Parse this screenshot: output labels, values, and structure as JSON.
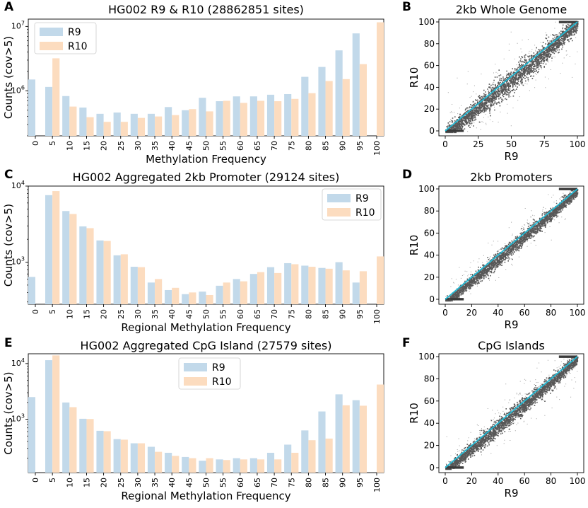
{
  "colors": {
    "r9": "#c2d9ea",
    "r10": "#fcdcbf",
    "scatter": "#3a3a3a",
    "diag": "#22b9d4"
  },
  "chart_data": [
    {
      "panel": "A",
      "type": "bar",
      "yscale": "log",
      "title": "HG002 R9 & R10 (28862851 sites)",
      "xlabel": "Methylation Frequency",
      "ylabel": "Counts (cov>5)",
      "ylim": [
        200000,
        13000000
      ],
      "yticks": [
        {
          "value": 1000000,
          "base": "10",
          "exp": "6"
        },
        {
          "value": 10000000,
          "base": "10",
          "exp": "7"
        }
      ],
      "legend": "top-left",
      "categories": [
        "0",
        "5",
        "10",
        "15",
        "20",
        "25",
        "30",
        "35",
        "40",
        "45",
        "50",
        "55",
        "60",
        "65",
        "70",
        "75",
        "80",
        "85",
        "90",
        "95",
        "100"
      ],
      "series": [
        {
          "name": "R9",
          "values": [
            1500000,
            1150000,
            830000,
            550000,
            440000,
            460000,
            440000,
            440000,
            560000,
            500000,
            780000,
            690000,
            820000,
            820000,
            870000,
            890000,
            1650000,
            2350000,
            4250000,
            7800000,
            null
          ]
        },
        {
          "name": "R10",
          "values": [
            null,
            3200000,
            570000,
            390000,
            330000,
            330000,
            380000,
            400000,
            420000,
            520000,
            480000,
            700000,
            650000,
            700000,
            690000,
            750000,
            920000,
            1420000,
            1520000,
            2600000,
            11600000
          ]
        }
      ]
    },
    {
      "panel": "B",
      "type": "scatter",
      "title": "2kb Whole Genome",
      "xlabel": "R9",
      "ylabel": "R10",
      "xlim": [
        0,
        100
      ],
      "ylim": [
        0,
        100
      ],
      "xticks": [
        0,
        25,
        50,
        75,
        100
      ],
      "yticks": [
        0,
        20,
        40,
        60,
        80,
        100
      ],
      "diagonal": true
    },
    {
      "panel": "C",
      "type": "bar",
      "yscale": "log",
      "title": "HG002 Aggregated 2kb Promoter (29124 sites)",
      "xlabel": "Regional Methylation Frequency",
      "ylabel": "Counts (cov>5)",
      "ylim": [
        280,
        10000
      ],
      "yticks": [
        {
          "value": 1000,
          "base": "10",
          "exp": "3"
        },
        {
          "value": 10000,
          "base": "10",
          "exp": "4"
        }
      ],
      "legend": "top-right",
      "categories": [
        "0",
        "5",
        "10",
        "15",
        "20",
        "25",
        "30",
        "35",
        "40",
        "45",
        "50",
        "55",
        "60",
        "65",
        "70",
        "75",
        "80",
        "85",
        "90",
        "95",
        "100"
      ],
      "series": [
        {
          "name": "R9",
          "values": [
            640,
            7600,
            4700,
            2950,
            1930,
            1230,
            870,
            540,
            430,
            380,
            410,
            490,
            600,
            700,
            860,
            970,
            900,
            840,
            1000,
            540,
            null
          ]
        },
        {
          "name": "R10",
          "values": [
            null,
            8600,
            4300,
            2800,
            1900,
            1270,
            860,
            600,
            460,
            400,
            370,
            540,
            560,
            740,
            720,
            940,
            870,
            820,
            780,
            760,
            1190
          ]
        }
      ]
    },
    {
      "panel": "D",
      "type": "scatter",
      "title": "2kb Promoters",
      "xlabel": "R9",
      "ylabel": "R10",
      "xlim": [
        0,
        100
      ],
      "ylim": [
        0,
        100
      ],
      "xticks": [
        0,
        20,
        40,
        60,
        80,
        100
      ],
      "yticks": [
        0,
        20,
        40,
        60,
        80,
        100
      ],
      "diagonal": true
    },
    {
      "panel": "E",
      "type": "bar",
      "yscale": "log",
      "title": "HG002 Aggregated CpG Island (27579 sites)",
      "xlabel": "Regional Methylation Frequency",
      "ylabel": "Counts (cov>5)",
      "ylim": [
        110,
        15000
      ],
      "yticks": [
        {
          "value": 1000,
          "base": "10",
          "exp": "3"
        },
        {
          "value": 10000,
          "base": "10",
          "exp": "4"
        }
      ],
      "legend": "top-center",
      "categories": [
        "0",
        "5",
        "10",
        "15",
        "20",
        "25",
        "30",
        "35",
        "40",
        "45",
        "50",
        "55",
        "60",
        "65",
        "70",
        "75",
        "80",
        "85",
        "90",
        "95",
        "100"
      ],
      "series": [
        {
          "name": "R9",
          "values": [
            2500,
            11500,
            2000,
            1020,
            620,
            440,
            370,
            320,
            250,
            210,
            180,
            190,
            200,
            200,
            250,
            350,
            630,
            1380,
            2800,
            2200,
            null
          ]
        },
        {
          "name": "R10",
          "values": [
            null,
            14000,
            1650,
            1010,
            610,
            430,
            370,
            260,
            220,
            200,
            200,
            185,
            190,
            190,
            190,
            250,
            420,
            450,
            1780,
            1750,
            4200
          ]
        }
      ]
    },
    {
      "panel": "F",
      "type": "scatter",
      "title": "CpG Islands",
      "xlabel": "R9",
      "ylabel": "R10",
      "xlim": [
        0,
        100
      ],
      "ylim": [
        0,
        100
      ],
      "xticks": [
        0,
        20,
        40,
        60,
        80,
        100
      ],
      "yticks": [
        0,
        20,
        40,
        60,
        80,
        100
      ],
      "diagonal": true
    }
  ]
}
